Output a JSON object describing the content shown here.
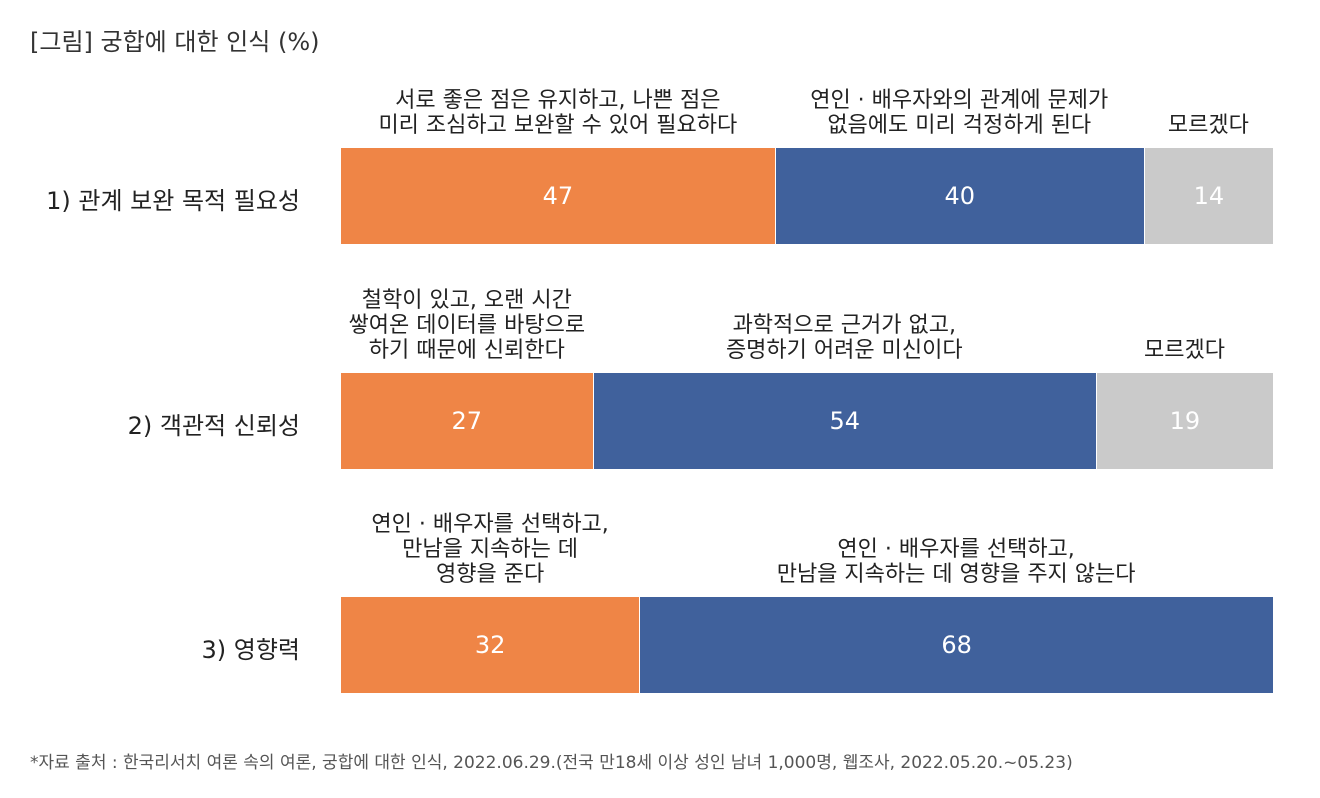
{
  "title": "[그림] 궁합에 대한 인식 (%)",
  "source": "*자료 출처 : 한국리서치 여론 속의 여론, 궁합에 대한 인식, 2022.06.29.(전국 만18세 이상 성인 남녀 1,000명, 웹조사, 2022.05.20.~05.23)",
  "colors": {
    "orange": "#EF8546",
    "blue": "#40619C",
    "gray": "#CACACA"
  },
  "chart_data": {
    "type": "bar",
    "orientation": "horizontal-stacked-100",
    "categories": [
      "1) 관계 보완 목적 필요성",
      "2) 객관적 신뢰성",
      "3) 영향력"
    ],
    "rows": [
      {
        "label": "1) 관계 보완 목적 필요성",
        "segments": [
          {
            "value": 47,
            "label": "47",
            "color": "#EF8546",
            "annotation": [
              "서로 좋은 점은 유지하고, 나쁜 점은",
              "미리 조심하고 보완할 수 있어 필요하다"
            ]
          },
          {
            "value": 40,
            "label": "40",
            "color": "#40619C",
            "annotation": [
              "연인 · 배우자와의 관계에 문제가",
              "없음에도 미리 걱정하게 된다"
            ]
          },
          {
            "value": 14,
            "label": "14",
            "color": "#CACACA",
            "annotation": [
              "모르겠다"
            ]
          }
        ]
      },
      {
        "label": "2) 객관적 신뢰성",
        "segments": [
          {
            "value": 27,
            "label": "27",
            "color": "#EF8546",
            "annotation": [
              "철학이 있고, 오랜 시간",
              "쌓여온 데이터를 바탕으로",
              "하기 때문에 신뢰한다"
            ]
          },
          {
            "value": 54,
            "label": "54",
            "color": "#40619C",
            "annotation": [
              "과학적으로 근거가 없고,",
              "증명하기 어려운 미신이다"
            ]
          },
          {
            "value": 19,
            "label": "19",
            "color": "#CACACA",
            "annotation": [
              "모르겠다"
            ]
          }
        ]
      },
      {
        "label": "3) 영향력",
        "segments": [
          {
            "value": 32,
            "label": "32",
            "color": "#EF8546",
            "annotation": [
              "연인 · 배우자를 선택하고,",
              "만남을 지속하는 데",
              "영향을 준다"
            ]
          },
          {
            "value": 68,
            "label": "68",
            "color": "#40619C",
            "annotation": [
              "연인 · 배우자를 선택하고,",
              "만남을 지속하는 데 영향을 주지 않는다"
            ]
          }
        ]
      }
    ]
  }
}
